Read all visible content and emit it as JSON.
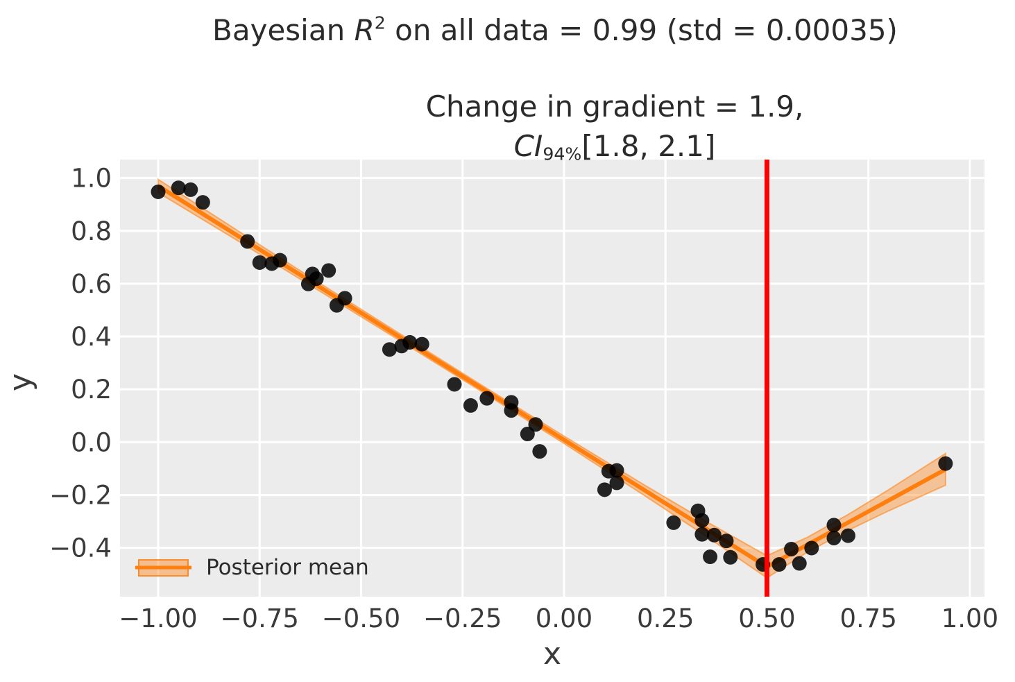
{
  "figure": {
    "suptitle": {
      "prefix": "Bayesian ",
      "var": "R",
      "sup": "2",
      "suffix": " on all data = 0.99 (std = 0.00035)"
    },
    "axes_title": {
      "line1": "Change in gradient = 1.9,",
      "var": "CI",
      "sub": "94%",
      "suffix": "[1.8, 2.1]"
    }
  },
  "legend": {
    "label": "Posterior mean"
  },
  "colors": {
    "plot_bg": "#ececec",
    "grid": "#ffffff",
    "scatter": "#000000",
    "posterior_line": "#ff7f0e",
    "ci_band_fill": "rgba(255,127,14,0.38)",
    "ci_band_edge": "rgba(255,127,14,0.55)",
    "changepoint_line": "#ff0000",
    "title_text": "#2b2b2b",
    "tick_text": "#3a3a3a"
  },
  "chart_data": {
    "type": "scatter",
    "title": "Bayesian R² on all data = 0.99 (std = 0.00035)",
    "subtitle": "Change in gradient = 1.9, CI_94% [1.8, 2.1]",
    "xlabel": "x",
    "ylabel": "y",
    "xlim": [
      -1.094,
      1.036
    ],
    "ylim": [
      -0.585,
      1.07
    ],
    "grid": true,
    "legend_position": "lower left",
    "xticks": [
      {
        "v": -1.0,
        "label": "−1.00"
      },
      {
        "v": -0.75,
        "label": "−0.75"
      },
      {
        "v": -0.5,
        "label": "−0.50"
      },
      {
        "v": -0.25,
        "label": "−0.25"
      },
      {
        "v": 0.0,
        "label": "0.00"
      },
      {
        "v": 0.25,
        "label": "0.25"
      },
      {
        "v": 0.5,
        "label": "0.50"
      },
      {
        "v": 0.75,
        "label": "0.75"
      },
      {
        "v": 1.0,
        "label": "1.00"
      }
    ],
    "yticks": [
      {
        "v": 1.0,
        "label": "1.0"
      },
      {
        "v": 0.8,
        "label": "0.8"
      },
      {
        "v": 0.6,
        "label": "0.6"
      },
      {
        "v": 0.4,
        "label": "0.4"
      },
      {
        "v": 0.2,
        "label": "0.2"
      },
      {
        "v": 0.0,
        "label": "0.0"
      },
      {
        "v": -0.2,
        "label": "−0.2"
      },
      {
        "v": -0.4,
        "label": "−0.4"
      }
    ],
    "scatter_points": [
      [
        -1.0,
        0.948
      ],
      [
        -0.95,
        0.963
      ],
      [
        -0.92,
        0.956
      ],
      [
        -0.89,
        0.908
      ],
      [
        -0.78,
        0.76
      ],
      [
        -0.75,
        0.68
      ],
      [
        -0.72,
        0.676
      ],
      [
        -0.7,
        0.689
      ],
      [
        -0.63,
        0.599
      ],
      [
        -0.62,
        0.637
      ],
      [
        -0.61,
        0.619
      ],
      [
        -0.58,
        0.65
      ],
      [
        -0.56,
        0.518
      ],
      [
        -0.54,
        0.545
      ],
      [
        -0.43,
        0.351
      ],
      [
        -0.4,
        0.364
      ],
      [
        -0.38,
        0.378
      ],
      [
        -0.35,
        0.371
      ],
      [
        -0.27,
        0.219
      ],
      [
        -0.23,
        0.139
      ],
      [
        -0.19,
        0.166
      ],
      [
        -0.13,
        0.151
      ],
      [
        -0.13,
        0.12
      ],
      [
        -0.09,
        0.031
      ],
      [
        -0.07,
        0.067
      ],
      [
        -0.06,
        -0.035
      ],
      [
        0.1,
        -0.18
      ],
      [
        0.11,
        -0.11
      ],
      [
        0.13,
        -0.107
      ],
      [
        0.13,
        -0.154
      ],
      [
        0.27,
        -0.305
      ],
      [
        0.33,
        -0.26
      ],
      [
        0.34,
        -0.296
      ],
      [
        0.34,
        -0.349
      ],
      [
        0.37,
        -0.352
      ],
      [
        0.4,
        -0.374
      ],
      [
        0.36,
        -0.434
      ],
      [
        0.41,
        -0.436
      ],
      [
        0.49,
        -0.463
      ],
      [
        0.53,
        -0.463
      ],
      [
        0.56,
        -0.405
      ],
      [
        0.58,
        -0.459
      ],
      [
        0.61,
        -0.401
      ],
      [
        0.665,
        -0.314
      ],
      [
        0.665,
        -0.363
      ],
      [
        0.7,
        -0.354
      ],
      [
        0.94,
        -0.081
      ]
    ],
    "posterior_mean": {
      "label": "Posterior mean",
      "points": [
        [
          -1.0,
          0.97
        ],
        [
          0.5,
          -0.472
        ],
        [
          0.94,
          -0.103
        ]
      ]
    },
    "ci_band": {
      "x": [
        -1.0,
        -0.8,
        -0.6,
        -0.4,
        -0.2,
        0.0,
        0.2,
        0.35,
        0.5,
        0.6,
        0.7,
        0.8,
        0.94
      ],
      "lo": [
        0.945,
        0.759,
        0.57,
        0.38,
        0.189,
        -0.005,
        -0.204,
        -0.356,
        -0.514,
        -0.416,
        -0.334,
        -0.26,
        -0.163
      ],
      "hi": [
        0.995,
        0.797,
        0.6,
        0.406,
        0.213,
        0.023,
        -0.164,
        -0.3,
        -0.43,
        -0.36,
        -0.274,
        -0.18,
        -0.043
      ]
    },
    "changepoint_vline_x": 0.5
  }
}
